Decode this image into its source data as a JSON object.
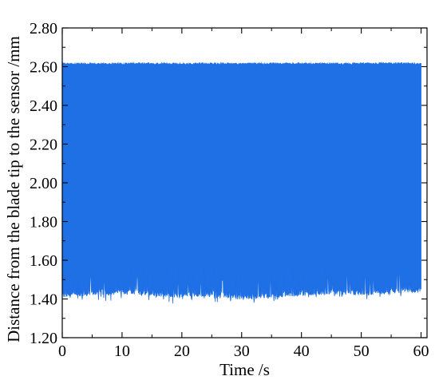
{
  "chart_data": {
    "type": "area",
    "title": "",
    "xlabel": "Time /s",
    "ylabel": "Distance from the blade tip to the sensor /mm",
    "xlim": [
      0,
      61
    ],
    "ylim": [
      1.2,
      2.8
    ],
    "x_ticks": [
      0,
      10,
      20,
      30,
      40,
      50,
      60
    ],
    "y_ticks": [
      1.2,
      1.4,
      1.6,
      1.8,
      2.0,
      2.2,
      2.4,
      2.6,
      2.8
    ],
    "x_tick_labels": [
      "0",
      "10",
      "20",
      "30",
      "40",
      "50",
      "60"
    ],
    "y_tick_labels": [
      "1.20",
      "1.40",
      "1.60",
      "1.80",
      "2.00",
      "2.20",
      "2.40",
      "2.60",
      "2.80"
    ],
    "grid": false,
    "legend": false,
    "series": [
      {
        "color": "#1f6fe5",
        "x": [
          0,
          5,
          10,
          15,
          20,
          25,
          30,
          35,
          40,
          45,
          50,
          55,
          60
        ],
        "upper": [
          2.615,
          2.614,
          2.615,
          2.616,
          2.614,
          2.615,
          2.614,
          2.615,
          2.615,
          2.614,
          2.615,
          2.616,
          2.615
        ],
        "lower": [
          1.42,
          1.43,
          1.44,
          1.43,
          1.42,
          1.43,
          1.41,
          1.42,
          1.43,
          1.44,
          1.43,
          1.44,
          1.45
        ]
      }
    ]
  }
}
